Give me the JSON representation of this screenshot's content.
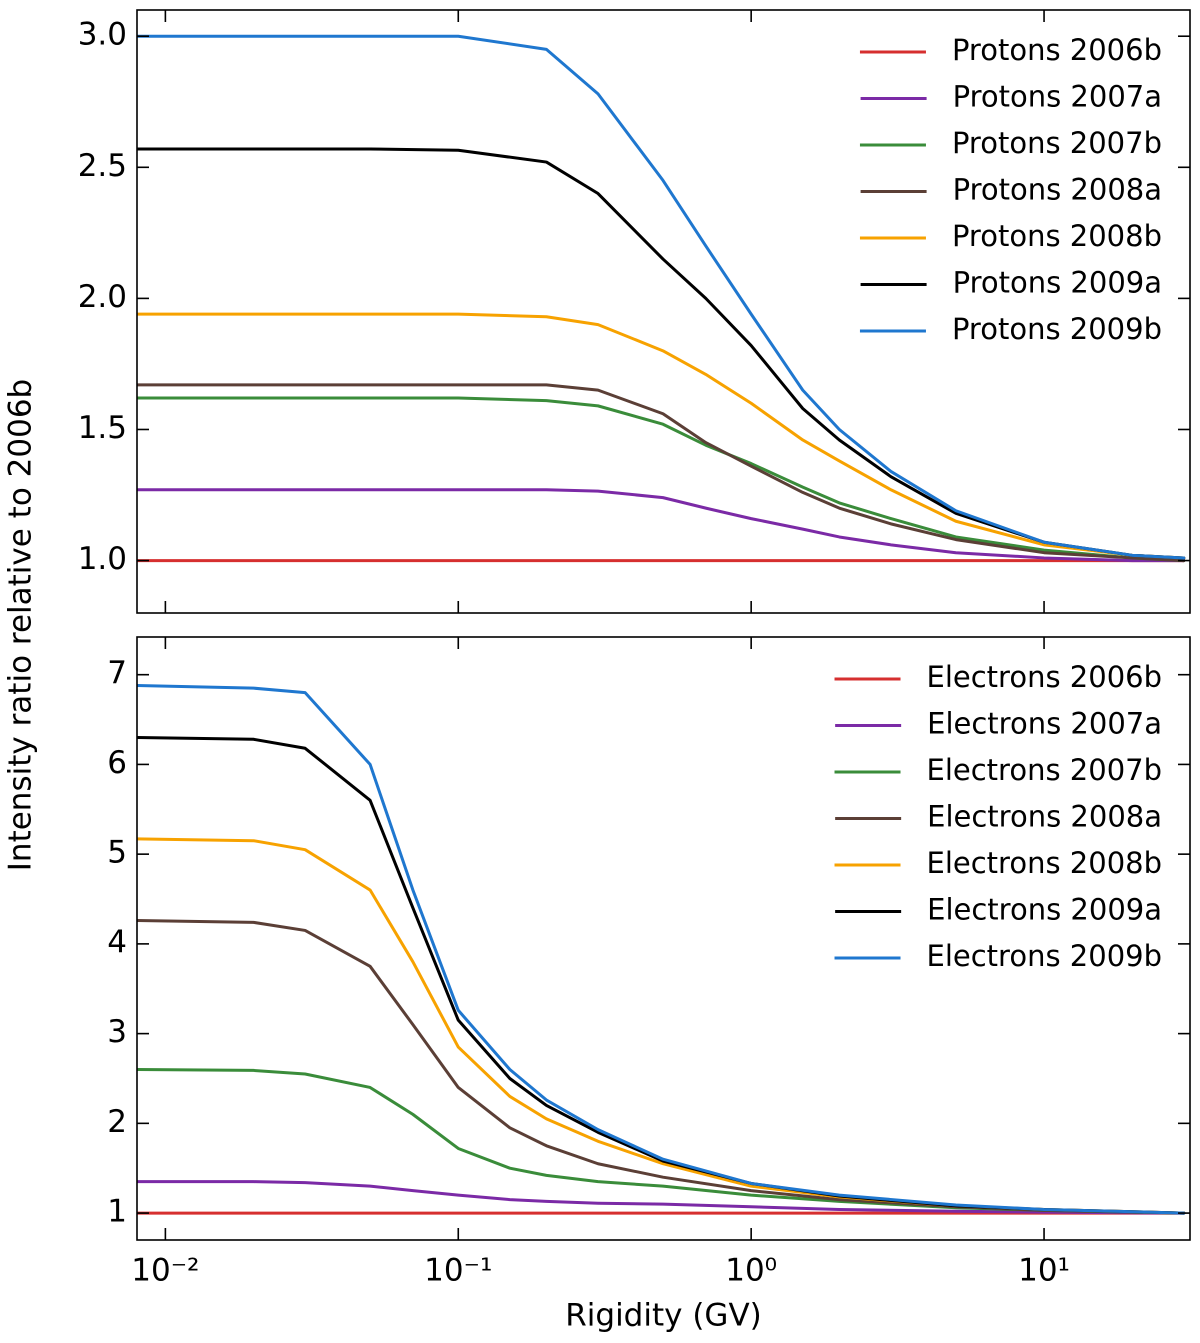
{
  "ylabel": "Intensity ratio relative to 2006b",
  "chart_data": [
    {
      "type": "line",
      "xscale": "log",
      "legend": "upper right",
      "xlim": [
        0.008,
        31.5
      ],
      "xticks": [
        0.01,
        0.1,
        1,
        10
      ],
      "ylim": [
        0.8,
        3.1
      ],
      "yticks": [
        {
          "value": 1,
          "label": "1.0"
        },
        1.5,
        {
          "value": 2,
          "label": "2.0"
        },
        2.5,
        {
          "value": 3,
          "label": "3.0"
        }
      ],
      "x": [
        0.008,
        0.02,
        0.05,
        0.1,
        0.2,
        0.3,
        0.5,
        0.7,
        1,
        1.5,
        2,
        3,
        5,
        10,
        20,
        30
      ],
      "series": [
        {
          "name": "Protons 2006b",
          "color": "#d62f2f",
          "values": [
            1,
            1,
            1,
            1,
            1,
            1,
            1,
            1,
            1,
            1,
            1,
            1,
            1,
            1,
            1,
            1
          ]
        },
        {
          "name": "Protons 2007a",
          "color": "#7b2aa6",
          "values": [
            1.27,
            1.27,
            1.27,
            1.27,
            1.27,
            1.265,
            1.24,
            1.2,
            1.16,
            1.12,
            1.09,
            1.06,
            1.03,
            1.01,
            1.0,
            1.0
          ]
        },
        {
          "name": "Protons 2007b",
          "color": "#3a8c3a",
          "values": [
            1.62,
            1.62,
            1.62,
            1.62,
            1.61,
            1.59,
            1.52,
            1.44,
            1.37,
            1.28,
            1.22,
            1.16,
            1.09,
            1.04,
            1.01,
            1.0
          ]
        },
        {
          "name": "Protons 2008a",
          "color": "#5b3f36",
          "values": [
            1.67,
            1.67,
            1.67,
            1.67,
            1.67,
            1.65,
            1.56,
            1.45,
            1.36,
            1.26,
            1.2,
            1.14,
            1.08,
            1.03,
            1.01,
            1.0
          ]
        },
        {
          "name": "Protons 2008b",
          "color": "#f7a200",
          "values": [
            1.94,
            1.94,
            1.94,
            1.94,
            1.93,
            1.9,
            1.8,
            1.71,
            1.6,
            1.46,
            1.38,
            1.27,
            1.15,
            1.06,
            1.02,
            1.01
          ]
        },
        {
          "name": "Protons 2009a",
          "color": "#000000",
          "values": [
            2.57,
            2.57,
            2.57,
            2.565,
            2.52,
            2.4,
            2.15,
            2.0,
            1.82,
            1.58,
            1.46,
            1.32,
            1.18,
            1.07,
            1.02,
            1.01
          ]
        },
        {
          "name": "Protons 2009b",
          "color": "#1f77cf",
          "values": [
            3.0,
            3.0,
            3.0,
            3.0,
            2.95,
            2.78,
            2.45,
            2.2,
            1.94,
            1.65,
            1.5,
            1.34,
            1.19,
            1.07,
            1.02,
            1.01
          ]
        }
      ]
    },
    {
      "type": "line",
      "xscale": "log",
      "legend": "upper right",
      "xlabel": "Rigidity (GV)",
      "xlim": [
        0.008,
        31.5
      ],
      "xticks": [
        {
          "value": 0.01,
          "label": "10⁻²"
        },
        {
          "value": 0.1,
          "label": "10⁻¹"
        },
        {
          "value": 1,
          "label": "10⁰"
        },
        {
          "value": 10,
          "label": "10¹"
        }
      ],
      "ylim": [
        0.7,
        7.42
      ],
      "yticks": [
        1,
        2,
        3,
        4,
        5,
        6,
        7
      ],
      "x": [
        0.008,
        0.02,
        0.03,
        0.05,
        0.07,
        0.1,
        0.15,
        0.2,
        0.3,
        0.5,
        1,
        2,
        5,
        10,
        30
      ],
      "series": [
        {
          "name": "Electrons 2006b",
          "color": "#d62f2f",
          "values": [
            1,
            1,
            1,
            1,
            1,
            1,
            1,
            1,
            1,
            1,
            1,
            1,
            1,
            1,
            1
          ]
        },
        {
          "name": "Electrons 2007a",
          "color": "#7b2aa6",
          "values": [
            1.35,
            1.35,
            1.34,
            1.3,
            1.25,
            1.2,
            1.15,
            1.13,
            1.11,
            1.1,
            1.07,
            1.04,
            1.02,
            1.01,
            1.0
          ]
        },
        {
          "name": "Electrons 2007b",
          "color": "#3a8c3a",
          "values": [
            2.6,
            2.59,
            2.55,
            2.4,
            2.1,
            1.72,
            1.5,
            1.42,
            1.35,
            1.3,
            1.2,
            1.13,
            1.06,
            1.03,
            1.0
          ]
        },
        {
          "name": "Electrons 2008a",
          "color": "#5b3f36",
          "values": [
            4.26,
            4.24,
            4.15,
            3.75,
            3.1,
            2.4,
            1.95,
            1.75,
            1.55,
            1.4,
            1.25,
            1.15,
            1.07,
            1.03,
            1.0
          ]
        },
        {
          "name": "Electrons 2008b",
          "color": "#f7a200",
          "values": [
            5.17,
            5.15,
            5.05,
            4.6,
            3.8,
            2.85,
            2.3,
            2.05,
            1.8,
            1.55,
            1.3,
            1.18,
            1.08,
            1.04,
            1.0
          ]
        },
        {
          "name": "Electrons 2009a",
          "color": "#000000",
          "values": [
            6.3,
            6.28,
            6.18,
            5.6,
            4.4,
            3.15,
            2.5,
            2.2,
            1.9,
            1.58,
            1.33,
            1.19,
            1.08,
            1.04,
            1.0
          ]
        },
        {
          "name": "Electrons 2009b",
          "color": "#1f77cf",
          "values": [
            6.88,
            6.85,
            6.8,
            6.0,
            4.6,
            3.26,
            2.6,
            2.26,
            1.93,
            1.6,
            1.33,
            1.2,
            1.09,
            1.04,
            1.0
          ]
        }
      ]
    }
  ]
}
